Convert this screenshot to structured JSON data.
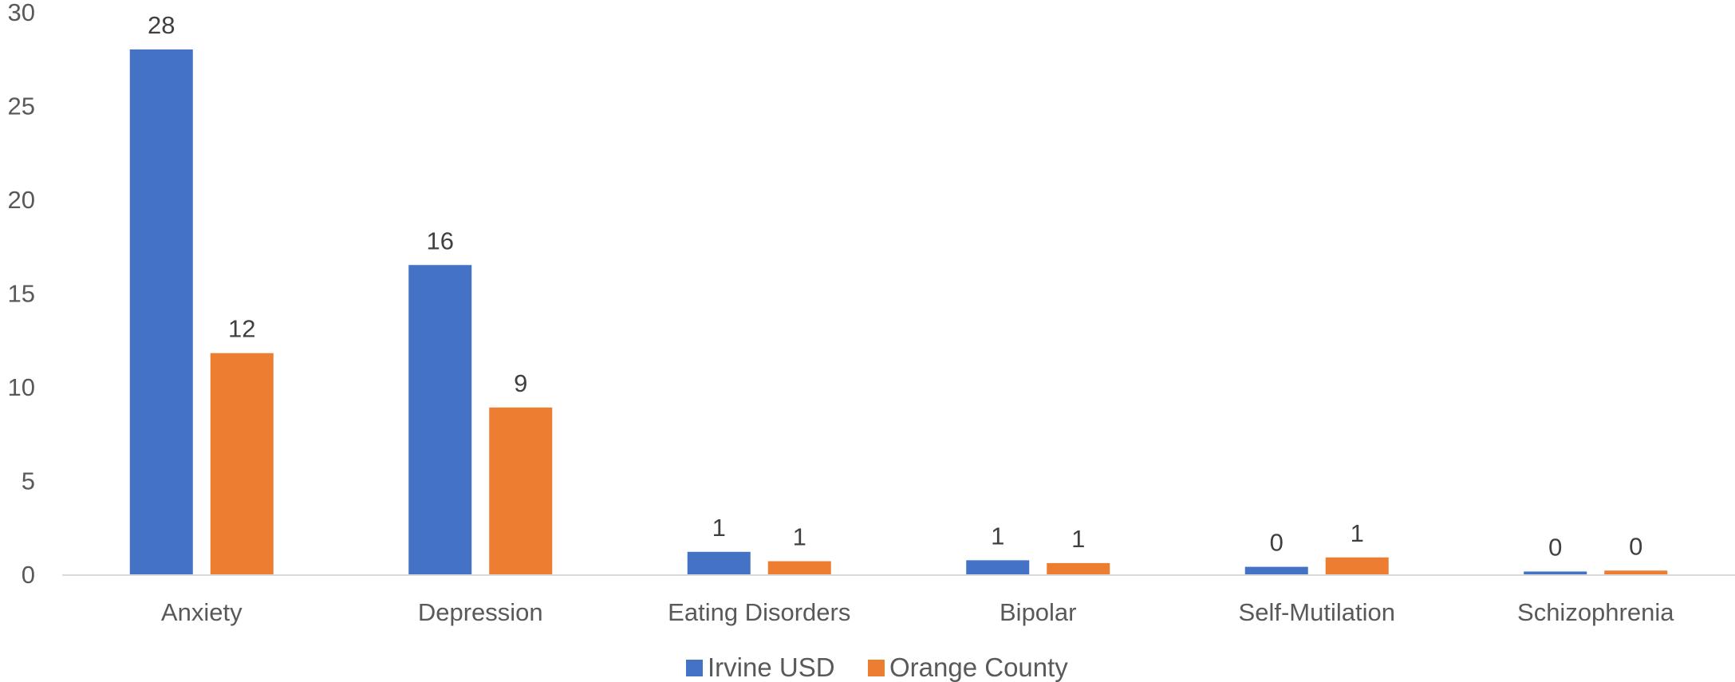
{
  "chart_data": {
    "type": "bar",
    "categories": [
      "Anxiety",
      "Depression",
      "Eating Disorders",
      "Bipolar",
      "Self-Mutilation",
      "Schizophrenia"
    ],
    "series": [
      {
        "name": "Irvine USD",
        "color": "#4472C4",
        "values": [
          28,
          16.5,
          1.2,
          0.75,
          0.4,
          0.15
        ],
        "data_labels": [
          "28",
          "16",
          "1",
          "1",
          "0",
          "0"
        ]
      },
      {
        "name": "Orange County",
        "color": "#ED7D31",
        "values": [
          11.8,
          8.9,
          0.7,
          0.6,
          0.9,
          0.2
        ],
        "data_labels": [
          "12",
          "9",
          "1",
          "1",
          "1",
          "0"
        ]
      }
    ],
    "yticks": [
      0,
      5,
      10,
      15,
      20,
      25,
      30
    ],
    "ylim": [
      0,
      30
    ],
    "grid": false,
    "legend": "bottom-center",
    "title": "",
    "xlabel": "",
    "ylabel": ""
  }
}
